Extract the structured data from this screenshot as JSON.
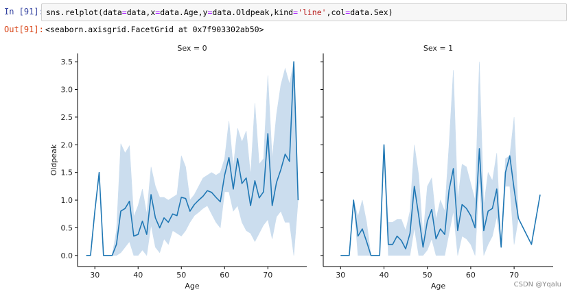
{
  "cell": {
    "in_prompt": "In [91]:",
    "code_parts": [
      {
        "t": "sns.relplot(data",
        "c": ""
      },
      {
        "t": "=",
        "c": "kw"
      },
      {
        "t": "data,x",
        "c": ""
      },
      {
        "t": "=",
        "c": "kw"
      },
      {
        "t": "data.Age,y",
        "c": ""
      },
      {
        "t": "=",
        "c": "kw"
      },
      {
        "t": "data.Oldpeak,kind",
        "c": ""
      },
      {
        "t": "=",
        "c": "kw"
      },
      {
        "t": "'line'",
        "c": "str"
      },
      {
        "t": ",col",
        "c": ""
      },
      {
        "t": "=",
        "c": "kw"
      },
      {
        "t": "data.Sex)",
        "c": ""
      }
    ],
    "out_prompt": "Out[91]:",
    "out_text": "<seaborn.axisgrid.FacetGrid at 0x7f903302ab50>"
  },
  "watermark": "CSDN @Yqalu",
  "colors": {
    "line": "#1f77b4",
    "band": "#c9dcee"
  },
  "chart_data": [
    {
      "type": "line",
      "title": "Sex = 0",
      "xlabel": "Age",
      "ylabel": "Oldpeak",
      "xlim": [
        26,
        79
      ],
      "ylim": [
        -0.2,
        3.65
      ],
      "xticks": [
        30,
        40,
        50,
        60,
        70
      ],
      "yticks": [
        0.0,
        0.5,
        1.0,
        1.5,
        2.0,
        2.5,
        3.0,
        3.5
      ],
      "x": [
        28,
        29,
        30,
        31,
        32,
        34,
        35,
        36,
        37,
        38,
        39,
        40,
        41,
        42,
        43,
        44,
        45,
        46,
        47,
        48,
        49,
        50,
        51,
        52,
        53,
        54,
        55,
        56,
        57,
        58,
        59,
        60,
        61,
        62,
        63,
        64,
        65,
        66,
        67,
        68,
        69,
        70,
        71,
        72,
        73,
        74,
        75,
        76,
        77
      ],
      "y": [
        0,
        0,
        0.8,
        1.5,
        0,
        0,
        0.2,
        0.8,
        0.85,
        0.98,
        0.35,
        0.38,
        0.62,
        0.38,
        1.1,
        0.68,
        0.5,
        0.68,
        0.6,
        0.75,
        0.72,
        1.05,
        1.03,
        0.8,
        0.92,
        1.0,
        1.07,
        1.17,
        1.14,
        1.05,
        0.97,
        1.45,
        1.77,
        1.2,
        1.75,
        1.3,
        1.4,
        0.9,
        1.35,
        1.04,
        1.15,
        2.2,
        0.9,
        1.32,
        1.55,
        1.83,
        1.7,
        3.5,
        1.0
      ],
      "ci_low": [
        0,
        0,
        0.8,
        1.5,
        0,
        0,
        0,
        0.05,
        0.15,
        0.25,
        0,
        0,
        0.1,
        0,
        0.55,
        0.15,
        0.05,
        0.3,
        0.2,
        0.45,
        0.4,
        0.35,
        0.45,
        0.6,
        0.72,
        0.78,
        0.85,
        0.9,
        0.75,
        0.6,
        0.5,
        1.15,
        1.15,
        0.8,
        0.9,
        0.6,
        0.45,
        0.4,
        0.25,
        0.4,
        0.55,
        0.65,
        0.3,
        0.7,
        0.8,
        0.6,
        0.6,
        0,
        1.0
      ],
      "ci_high": [
        0,
        0,
        0.8,
        1.5,
        0,
        0,
        0.45,
        2.02,
        1.85,
        1.98,
        0.7,
        0.9,
        1.2,
        0.75,
        1.6,
        1.25,
        1.05,
        1.05,
        1.0,
        1.05,
        1.1,
        1.8,
        1.6,
        1.0,
        1.1,
        1.25,
        1.4,
        1.45,
        1.5,
        1.45,
        1.5,
        1.75,
        2.43,
        1.6,
        2.3,
        2.05,
        2.25,
        1.45,
        2.75,
        1.65,
        1.75,
        3.25,
        1.75,
        2.55,
        3.08,
        3.38,
        3.1,
        3.5,
        1.0
      ]
    },
    {
      "type": "line",
      "title": "Sex = 1",
      "xlabel": "Age",
      "ylabel": "",
      "xlim": [
        26,
        79
      ],
      "ylim": [
        -0.2,
        3.65
      ],
      "xticks": [
        30,
        40,
        50,
        60,
        70
      ],
      "yticks": [
        0.0,
        0.5,
        1.0,
        1.5,
        2.0,
        2.5,
        3.0,
        3.5
      ],
      "x": [
        30,
        31,
        32,
        33,
        34,
        35,
        36,
        37,
        38,
        39,
        40,
        41,
        42,
        43,
        44,
        45,
        46,
        47,
        48,
        49,
        50,
        51,
        52,
        53,
        54,
        55,
        56,
        57,
        58,
        59,
        60,
        61,
        62,
        63,
        64,
        65,
        66,
        67,
        68,
        69,
        70,
        71,
        74,
        76
      ],
      "y": [
        0,
        0,
        0,
        1.0,
        0.35,
        0.48,
        0.25,
        0,
        0,
        0,
        2.0,
        0.2,
        0.2,
        0.35,
        0.27,
        0.12,
        0.4,
        1.25,
        0.72,
        0.15,
        0.62,
        0.83,
        0.3,
        0.48,
        0.38,
        1.18,
        1.57,
        0.45,
        0.92,
        0.85,
        0.72,
        0.5,
        1.93,
        0.45,
        0.8,
        0.85,
        1.2,
        0.15,
        1.5,
        1.8,
        1.2,
        0.67,
        0.2,
        1.1
      ],
      "ci_low": [
        0,
        0,
        0,
        1.0,
        0,
        0,
        0,
        0,
        0,
        0,
        2.0,
        0,
        0,
        0,
        0,
        0,
        0,
        0.5,
        0,
        0,
        0.1,
        0.3,
        0,
        0,
        0,
        0.4,
        0.8,
        0,
        0.35,
        0.3,
        0.2,
        0,
        1.4,
        0,
        0.2,
        0.35,
        0.7,
        0.15,
        1.25,
        1.25,
        0.2,
        0.67,
        0.2,
        1.1
      ],
      "ci_high": [
        0,
        0,
        0,
        1.0,
        0.7,
        1.0,
        0.6,
        0,
        0,
        0,
        2.0,
        0.6,
        0.6,
        0.65,
        0.65,
        0.45,
        0.8,
        2.0,
        1.45,
        0.35,
        1.25,
        1.4,
        0.65,
        1.0,
        0.8,
        2.0,
        3.35,
        1.0,
        1.65,
        1.6,
        1.3,
        1.0,
        3.5,
        0.9,
        1.5,
        1.35,
        1.85,
        0.15,
        1.75,
        1.8,
        2.5,
        0.67,
        0.2,
        1.1
      ]
    }
  ]
}
